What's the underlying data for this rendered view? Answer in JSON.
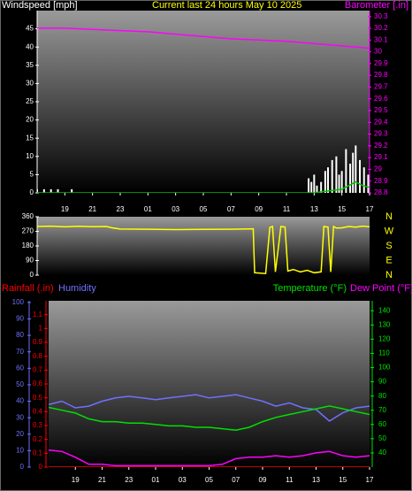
{
  "chart_data": [
    {
      "type": "line",
      "title": "Current last 24 hours May 10 2025",
      "ylabel": "Windspeed [mph]",
      "y2label": "Barometer [.in]",
      "axis_colors": {
        "y": "#ffffff",
        "y2": "#ff00ff"
      },
      "xlim": [
        0,
        24
      ],
      "xticks": [
        {
          "value": 2,
          "label": "19"
        },
        {
          "value": 4,
          "label": "21"
        },
        {
          "value": 6,
          "label": "23"
        },
        {
          "value": 8,
          "label": "01"
        },
        {
          "value": 10,
          "label": "03"
        },
        {
          "value": 12,
          "label": "05"
        },
        {
          "value": 14,
          "label": "07"
        },
        {
          "value": 16,
          "label": "09"
        },
        {
          "value": 18,
          "label": "11"
        },
        {
          "value": 20,
          "label": "13"
        },
        {
          "value": 22,
          "label": "15"
        },
        {
          "value": 24,
          "label": "17"
        }
      ],
      "ylim": [
        0,
        50
      ],
      "yticks": [
        0,
        5,
        10,
        15,
        20,
        25,
        30,
        35,
        40,
        45
      ],
      "y2lim": [
        28.8,
        30.35
      ],
      "y2ticks": [
        28.8,
        28.9,
        29,
        29.1,
        29.2,
        29.3,
        29.4,
        29.5,
        29.6,
        29.7,
        29.8,
        29.9,
        30,
        30.1,
        30.2,
        30.3
      ],
      "series": [
        {
          "type": "bar",
          "color": "#ffffff",
          "x": [
            0,
            0.5,
            1,
            1.5,
            2.5,
            19.6,
            19.8,
            20,
            20.2,
            20.5,
            20.8,
            21,
            21.3,
            21.6,
            21.8,
            22,
            22.3,
            22.6,
            22.8,
            23,
            23.3,
            23.6,
            23.9
          ],
          "values": [
            1,
            1,
            1,
            1,
            1,
            4,
            3,
            5,
            2,
            3,
            6,
            7,
            9,
            10,
            5,
            6,
            12,
            8,
            11,
            13,
            9,
            7,
            5
          ]
        },
        {
          "color": "#00c000",
          "x": [
            0,
            20,
            21,
            22,
            22.5,
            23,
            23.5,
            24
          ],
          "values": [
            0,
            0,
            0.5,
            1,
            2,
            3,
            2,
            1.5
          ]
        },
        {
          "color": "#ff00ff",
          "axis": "y2",
          "x": [
            0,
            2,
            4,
            6,
            8,
            10,
            12,
            14,
            16,
            18,
            20,
            22,
            24
          ],
          "values": [
            30.2,
            30.2,
            30.19,
            30.18,
            30.17,
            30.15,
            30.13,
            30.11,
            30.1,
            30.09,
            30.07,
            30.05,
            30.03
          ]
        }
      ]
    },
    {
      "type": "line",
      "axis_colors": {
        "y": "#ffffff",
        "y2": "#ffff00"
      },
      "xlim": [
        0,
        24
      ],
      "ylim": [
        0,
        360
      ],
      "yticks": [
        0,
        90,
        180,
        270,
        360
      ],
      "y2lim": [
        0,
        360
      ],
      "y2ticks": [
        {
          "value": 0,
          "label": "N"
        },
        {
          "value": 90,
          "label": "E"
        },
        {
          "value": 180,
          "label": "S"
        },
        {
          "value": 270,
          "label": "W"
        },
        {
          "value": 360,
          "label": "N"
        }
      ],
      "series": [
        {
          "color": "#ffff00",
          "x": [
            0,
            1,
            2,
            3,
            4,
            5,
            5.4,
            6,
            8,
            10,
            12,
            14,
            15.6,
            15.7,
            16.5,
            16.8,
            17,
            17.2,
            17.6,
            17.9,
            18.1,
            18.5,
            19,
            19.5,
            20,
            20.5,
            20.7,
            21,
            21.2,
            21.4,
            21.6,
            22,
            22.5,
            23,
            23.5,
            24
          ],
          "values": [
            300,
            302,
            298,
            301,
            299,
            300,
            292,
            284,
            283,
            281,
            282,
            283,
            286,
            15,
            10,
            295,
            300,
            20,
            300,
            296,
            25,
            35,
            20,
            30,
            15,
            20,
            300,
            296,
            20,
            300,
            290,
            292,
            300,
            296,
            302,
            298
          ]
        }
      ]
    },
    {
      "type": "line",
      "axis_colors": {
        "y": "#ff0000",
        "y2": "#00e000",
        "y3": "#7070ff"
      },
      "xlim": [
        0,
        24
      ],
      "xticks": [
        {
          "value": 2,
          "label": "19"
        },
        {
          "value": 4,
          "label": "21"
        },
        {
          "value": 6,
          "label": "23"
        },
        {
          "value": 8,
          "label": "01"
        },
        {
          "value": 10,
          "label": "03"
        },
        {
          "value": 12,
          "label": "05"
        },
        {
          "value": 14,
          "label": "07"
        },
        {
          "value": 16,
          "label": "09"
        },
        {
          "value": 18,
          "label": "11"
        },
        {
          "value": 20,
          "label": "13"
        },
        {
          "value": 22,
          "label": "15"
        },
        {
          "value": 24,
          "label": "17"
        }
      ],
      "ylim": [
        0,
        1.2
      ],
      "yticks": [
        0,
        0.1,
        0.2,
        0.3,
        0.4,
        0.5,
        0.6,
        0.7,
        0.8,
        0.9,
        1,
        1.1
      ],
      "y2lim": [
        30,
        147
      ],
      "y2ticks": [
        40,
        50,
        60,
        70,
        80,
        90,
        100,
        110,
        120,
        130,
        140
      ],
      "y3lim": [
        0,
        101
      ],
      "y3ticks": [
        0,
        10,
        20,
        30,
        40,
        50,
        60,
        70,
        80,
        90,
        100
      ],
      "series": [
        {
          "name": "Rainfall (.in)",
          "color": "#ff0000",
          "x": [
            0,
            24
          ],
          "values": [
            0,
            0
          ]
        },
        {
          "name": "Humidity",
          "color": "#7070ff",
          "axis": "y3",
          "x": [
            0,
            1,
            2,
            3,
            4,
            5,
            6,
            7,
            8,
            9,
            10,
            11,
            12,
            13,
            14,
            15,
            16,
            17,
            18,
            19,
            20,
            21,
            22,
            23,
            24
          ],
          "values": [
            38,
            40,
            36,
            37,
            40,
            42,
            43,
            42,
            41,
            42,
            43,
            44,
            42,
            43,
            44,
            42,
            40,
            37,
            39,
            36,
            35,
            28,
            33,
            36,
            37
          ]
        },
        {
          "name": "Temperature (°F)",
          "color": "#00e000",
          "axis": "y2",
          "x": [
            0,
            1,
            2,
            3,
            4,
            5,
            6,
            7,
            8,
            9,
            10,
            11,
            12,
            13,
            14,
            15,
            16,
            17,
            18,
            19,
            20,
            21,
            22,
            23,
            24
          ],
          "values": [
            72,
            70,
            68,
            64,
            62,
            62,
            61,
            61,
            60,
            59,
            59,
            58,
            58,
            57,
            56,
            58,
            62,
            65,
            67,
            69,
            71,
            73,
            71,
            69,
            67
          ]
        },
        {
          "name": "Dew Point (°F)",
          "color": "#ff00ff",
          "axis": "y2",
          "x": [
            0,
            1,
            2,
            3,
            4,
            5,
            6,
            7,
            8,
            9,
            10,
            11,
            12,
            13,
            14,
            15,
            16,
            17,
            18,
            19,
            20,
            21,
            22,
            23,
            24
          ],
          "values": [
            42,
            41,
            37,
            32,
            32,
            31,
            31,
            31,
            31,
            31,
            31,
            31,
            31,
            32,
            36,
            37,
            37,
            38,
            37,
            38,
            40,
            41,
            38,
            37,
            38
          ]
        }
      ]
    }
  ]
}
